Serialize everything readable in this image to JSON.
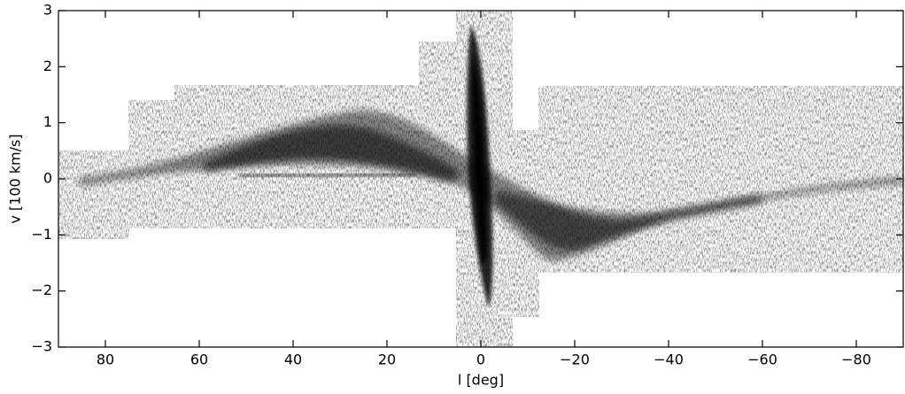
{
  "chart_data": {
    "type": "image",
    "xlabel": "l [deg]",
    "ylabel": "v [100 km/s]",
    "xlim": [
      90,
      -90
    ],
    "ylim": [
      -3,
      3
    ],
    "xticks": [
      80,
      60,
      40,
      20,
      0,
      {
        "value": -20,
        "label": "−20"
      },
      {
        "value": -40,
        "label": "−40"
      },
      {
        "value": -60,
        "label": "−60"
      },
      {
        "value": -80,
        "label": "−80"
      }
    ],
    "yticks": [
      {
        "value": -3,
        "label": "−3"
      },
      {
        "value": -2,
        "label": "−2"
      },
      {
        "value": -1,
        "label": "−1"
      },
      0,
      1,
      2,
      3
    ],
    "color": "#000000"
  }
}
